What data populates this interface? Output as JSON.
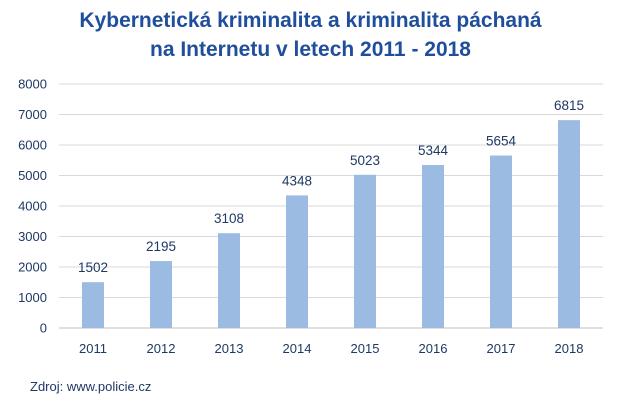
{
  "title_line1": "Kybernetická kriminalita a kriminalita páchaná",
  "title_line2": "na Internetu v letech 2011 - 2018",
  "source": "Zdroj: www.policie.cz",
  "colors": {
    "bar": "#9bbbe2",
    "title": "#1f4e9c",
    "text": "#1f3864",
    "grid": "#d9d9d9",
    "axis": "#bfbfbf"
  },
  "chart_data": {
    "type": "bar",
    "categories": [
      "2011",
      "2012",
      "2013",
      "2014",
      "2015",
      "2016",
      "2017",
      "2018"
    ],
    "values": [
      1502,
      2195,
      3108,
      4348,
      5023,
      5344,
      5654,
      6815
    ],
    "ylim": [
      0,
      8000
    ],
    "yticks": [
      0,
      1000,
      2000,
      3000,
      4000,
      5000,
      6000,
      7000,
      8000
    ],
    "grid": true,
    "data_labels": true,
    "legend": "none"
  }
}
